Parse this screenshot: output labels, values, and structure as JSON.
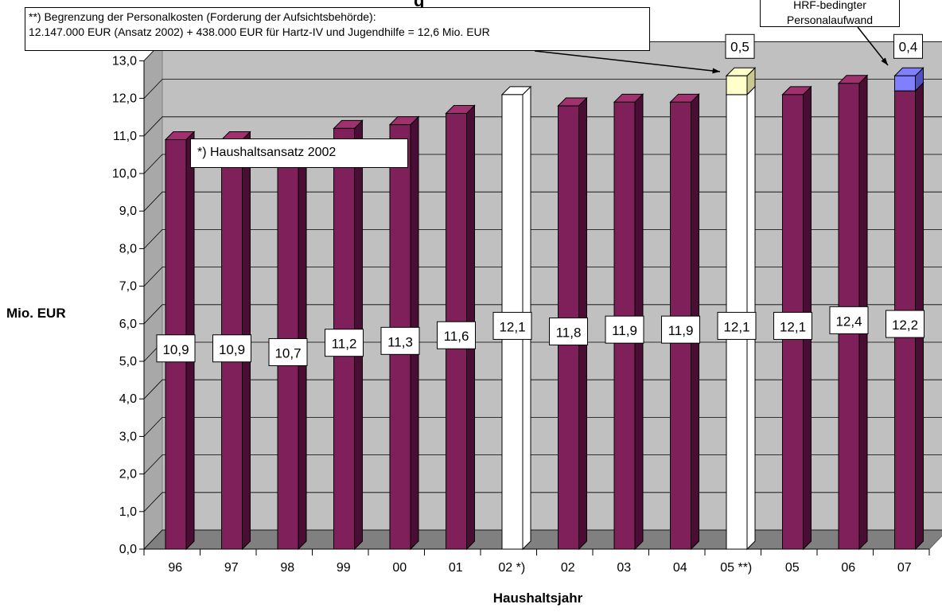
{
  "chart_data": {
    "type": "bar",
    "title": "",
    "xlabel": "Haushaltsjahr",
    "ylabel": "Mio. EUR",
    "ylim": [
      0,
      13
    ],
    "y_ticks": [
      "0,0",
      "1,0",
      "2,0",
      "3,0",
      "4,0",
      "5,0",
      "6,0",
      "7,0",
      "8,0",
      "9,0",
      "10,0",
      "11,0",
      "12,0",
      "13,0"
    ],
    "categories": [
      "96",
      "97",
      "98",
      "99",
      "00",
      "01",
      "02 *)",
      "02",
      "03",
      "04",
      "05 **)",
      "05",
      "06",
      "07"
    ],
    "values": [
      10.9,
      10.9,
      10.7,
      11.2,
      11.3,
      11.6,
      12.1,
      11.8,
      11.9,
      11.9,
      12.1,
      12.1,
      12.4,
      12.2
    ],
    "value_labels": [
      "10,9",
      "10,9",
      "10,7",
      "11,2",
      "11,3",
      "11,6",
      "12,1",
      "11,8",
      "11,9",
      "11,9",
      "12,1",
      "12,1",
      "12,4",
      "12,2"
    ],
    "bar_styles": [
      "filled",
      "filled",
      "filled",
      "filled",
      "filled",
      "filled",
      "outline",
      "filled",
      "filled",
      "filled",
      "outline",
      "filled",
      "filled",
      "filled"
    ],
    "stacked_extra": [
      {
        "category": "05 **)",
        "value": 0.5,
        "label": "0,5",
        "color": "#ffffcc"
      },
      {
        "category": "07",
        "value": 0.4,
        "label": "0,4",
        "color": "#8080ff"
      }
    ],
    "grid": true,
    "legend": "none"
  },
  "colors": {
    "bar_front": "#80205a",
    "bar_side": "#4a0d33",
    "bar_top": "#a0306e",
    "wall": "#c0c0c0",
    "floor": "#808080"
  },
  "annotations": {
    "personal_line1": "**) Begrenzung der Personalkosten (Forderung der Aufsichtsbehörde):",
    "personal_line2": "12.147.000 EUR (Ansatz 2002) + 438.000 EUR für Hartz-IV und Jugendhilfe = 12,6 Mio. EUR",
    "haushalt": "*) Haushaltsansatz 2002",
    "hartz_line1": "HRF-bedingter",
    "hartz_line2": "Personalaufwand"
  }
}
